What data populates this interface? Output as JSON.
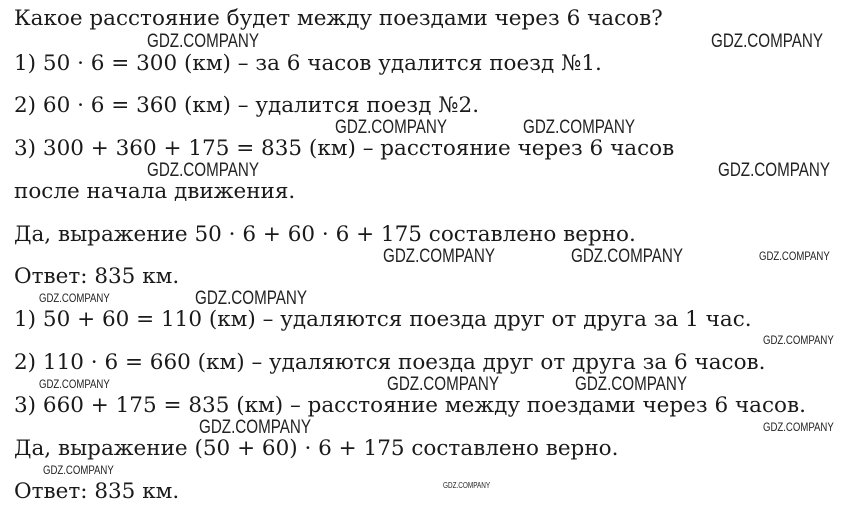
{
  "lines": [
    "Какое расстояние будет между поездами через 6 часов?",
    "1) 50 · 6 = 300 (км) – за 6 часов удалится поезд №1.",
    "2) 60 · 6 = 360 (км) – удалится поезд №2.",
    "3) 300 + 360 + 175 = 835 (км) – расстояние через 6 часов",
    "после начала движения.",
    "Да, выражение 50 · 6 + 60 · 6 + 175  составлено верно.",
    "Ответ: 835 км.",
    "1) 50 + 60 = 110 (км) – удаляются поезда друг от друга за 1 час.",
    "2) 110 · 6 = 660 (км) – удаляются поезда друг от друга за 6 часов.",
    "3) 660 + 175 = 835 (км) – расстояние между поездами через 6 часов.",
    "Да, выражение (50 + 60) · 6 + 175  составлено верно.",
    "Ответ: 835 км."
  ],
  "watermark": "GDZ.COMPANY"
}
